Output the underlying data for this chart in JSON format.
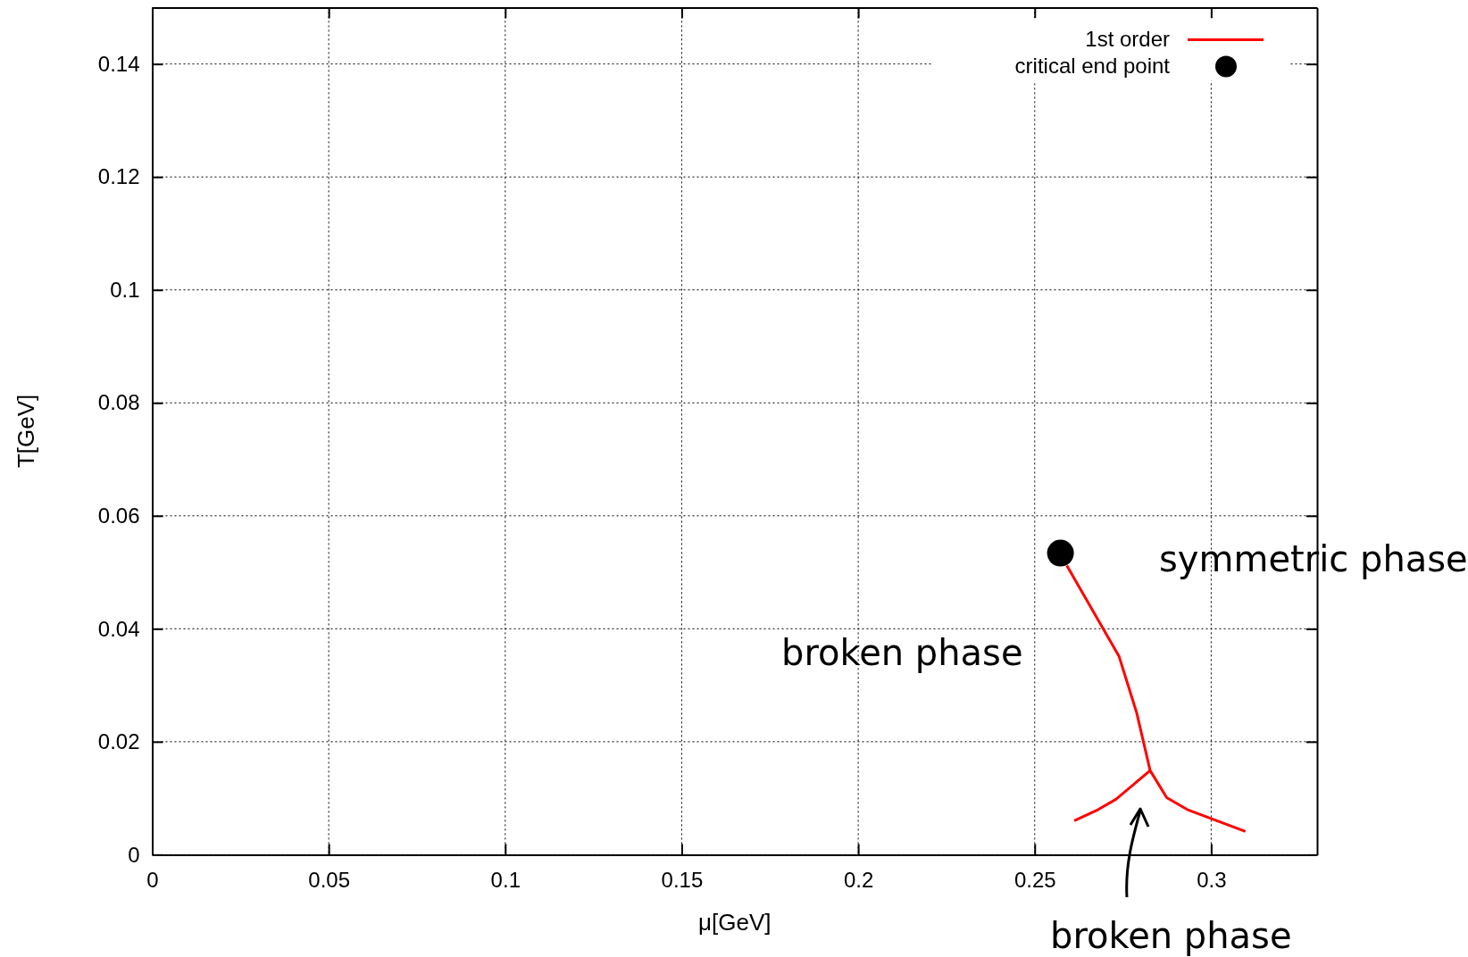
{
  "chart_data": {
    "type": "line",
    "xlabel": "μ[GeV]",
    "ylabel": "T[GeV]",
    "xlim": [
      0,
      0.33
    ],
    "ylim": [
      0,
      0.15
    ],
    "xticks": [
      0,
      0.05,
      0.1,
      0.15,
      0.2,
      0.25,
      0.3
    ],
    "yticks": [
      0,
      0.02,
      0.04,
      0.06,
      0.08,
      0.1,
      0.12,
      0.14
    ],
    "grid": true,
    "legend": "top right",
    "series": [
      {
        "name": "1st order",
        "color": "#ff0000",
        "marker": "none",
        "x": [
          0.2591,
          0.2739,
          0.2789,
          0.2827,
          0.2874,
          0.2932,
          0.3097,
          null,
          0.2612,
          0.268,
          0.273,
          0.2827
        ],
        "values": [
          0.0512,
          0.0351,
          0.0251,
          0.0149,
          0.0101,
          0.008,
          0.0041,
          null,
          0.006,
          0.008,
          0.0098,
          0.0149
        ]
      },
      {
        "name": "critical end point",
        "type": "scatter",
        "color": "#000000",
        "marker": "circle",
        "x": [
          0.2573
        ],
        "values": [
          0.0534
        ]
      }
    ],
    "annotations": [
      "symmetric phase",
      "broken phase",
      "broken phase"
    ]
  }
}
